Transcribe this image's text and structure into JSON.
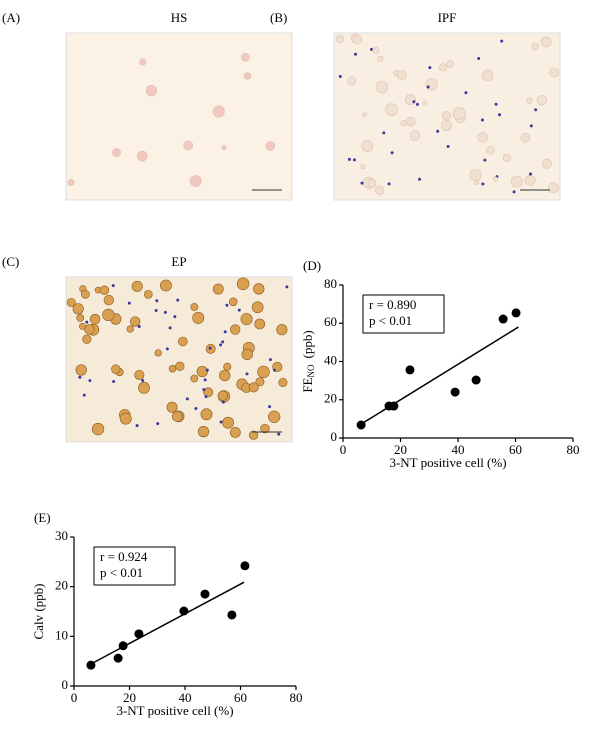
{
  "images": [
    {
      "label": "(A)",
      "title": "HS"
    },
    {
      "label": "(B)",
      "title": "IPF"
    },
    {
      "label": "(C)",
      "title": "EP"
    }
  ],
  "chart_data": [
    {
      "type": "scatter",
      "panel": "(D)",
      "x": [
        6.3,
        16,
        17.7,
        23.3,
        39,
        46.3,
        55.7,
        60.2
      ],
      "values": [
        6.8,
        16.7,
        16.7,
        35.6,
        24,
        30.3,
        62.2,
        65.4
      ],
      "trendline": {
        "x": [
          6,
          61
        ],
        "y": [
          7,
          58
        ]
      },
      "xlim": [
        0,
        80
      ],
      "xticks": [
        0,
        20,
        40,
        60,
        80
      ],
      "ylim": [
        0,
        80
      ],
      "yticks": [
        0,
        20,
        40,
        60,
        80
      ],
      "xlabel": "3-NT positive cell (%)",
      "ylabel": "FE",
      "ylabel_sub": "NO",
      "ylabel_unit": "(ppb)",
      "annotations": [
        "r = 0.890",
        "p < 0.01"
      ],
      "color": "#000000"
    },
    {
      "type": "scatter",
      "panel": "(E)",
      "x": [
        6.1,
        15.9,
        17.7,
        23.4,
        39.6,
        47.2,
        56.9,
        61.6
      ],
      "values": [
        4.2,
        5.6,
        8.1,
        10.5,
        15.1,
        18.5,
        14.3,
        24.2
      ],
      "trendline": {
        "x": [
          6,
          61.3
        ],
        "y": [
          4.4,
          20.9
        ]
      },
      "xlim": [
        0,
        80
      ],
      "xticks": [
        0,
        20,
        40,
        60,
        80
      ],
      "ylim": [
        0,
        30
      ],
      "yticks": [
        0,
        10,
        20,
        30
      ],
      "xlabel": "3-NT positive cell (%)",
      "ylabel": "Calv (ppb)",
      "annotations": [
        "r = 0.924",
        "p < 0.01"
      ],
      "color": "#000000"
    }
  ]
}
